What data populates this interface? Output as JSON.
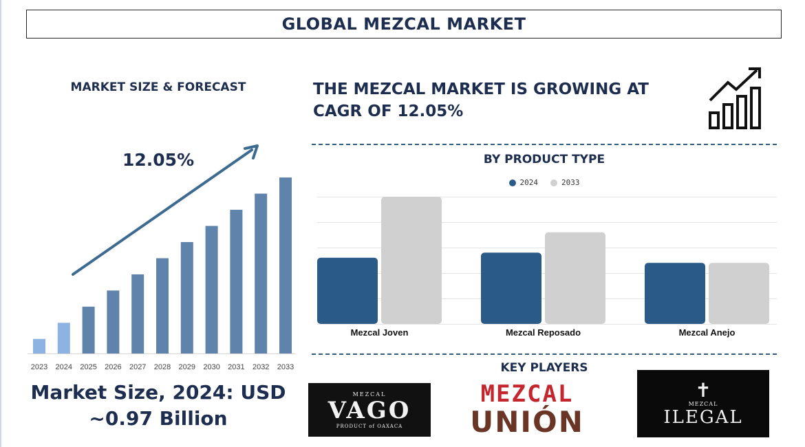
{
  "title": "GLOBAL MEZCAL MARKET",
  "left_panel": {
    "heading": "MARKET SIZE & FORECAST",
    "cagr": "12.05%",
    "market_size_line1": "Market Size, 2024: USD",
    "market_size_line2": "~0.97 Billion"
  },
  "headline": {
    "line1": "THE MEZCAL MARKET IS GROWING AT",
    "line2": "CAGR OF 12.05%"
  },
  "product_section": {
    "heading": "BY PRODUCT TYPE"
  },
  "players_section": {
    "heading": "KEY PLAYERS",
    "logos": [
      {
        "small": "MEZCAL",
        "big": "VAGO",
        "sub": "PRODUCT of OAXACA"
      },
      {
        "top": "MEZCAL",
        "bottom": "UNIÓN"
      },
      {
        "cross": "✝",
        "small": "MEZCAL",
        "big": "ILEGAL"
      }
    ]
  },
  "colors": {
    "navy": "#1c2d4f",
    "bar_light": "#8db3e2",
    "bar_main": "#5f83aa",
    "arrow": "#3d6a91",
    "series_2024": "#2a5a87",
    "series_2033": "#d0d0d0",
    "dashed": "#2f5c84"
  },
  "chart_data": [
    {
      "type": "bar",
      "categories": [
        "2023",
        "2024",
        "2025",
        "2026",
        "2027",
        "2028",
        "2029",
        "2030",
        "2031",
        "2032",
        "2033"
      ],
      "values": [
        9,
        19,
        29,
        39,
        49,
        59,
        69,
        79,
        89,
        99,
        109
      ],
      "highlight_categories": [
        "2023",
        "2024"
      ],
      "ylim": [
        0,
        115
      ],
      "annotation": "12.05%",
      "grid": false
    },
    {
      "type": "bar",
      "title": "BY PRODUCT TYPE",
      "categories": [
        "Mezcal Joven",
        "Mezcal Reposado",
        "Mezcal Anejo"
      ],
      "series": [
        {
          "name": "2024",
          "values": [
            2.6,
            2.8,
            2.4
          ]
        },
        {
          "name": "2033",
          "values": [
            5.0,
            3.6,
            2.4
          ]
        }
      ],
      "ylim": [
        0,
        5
      ],
      "grid": true,
      "legend": "top-center"
    }
  ]
}
